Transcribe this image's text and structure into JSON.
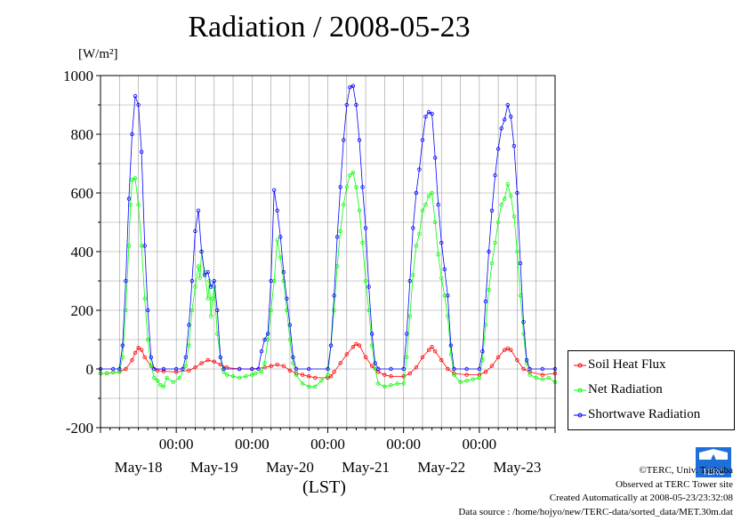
{
  "header": {
    "title": "Radiation / 2008-05-23",
    "unit_label": "[W/m²]"
  },
  "axis": {
    "time_zone_label": "(LST)"
  },
  "credits": {
    "copyright": "©TERC, Univ. Tsukuba",
    "observed": "Observed at TERC Tower site",
    "created": "Created Automatically at 2008-05-23/23:32:08",
    "source": "Data source : /home/hojyo/new/TERC-data/sorted_data/MET.30m.dat"
  },
  "logo": {
    "text": "TERC",
    "icon": "terc-logo-icon"
  },
  "colors": {
    "soil": "#ff0000",
    "net": "#00ff00",
    "shortwave": "#0000ff",
    "grid": "#999999"
  },
  "chart_data": {
    "type": "line",
    "title": "Radiation / 2008-05-23",
    "ylabel": "[W/m²]",
    "xlabel": "(LST)",
    "ylim": [
      -200,
      1000
    ],
    "yticks": [
      -200,
      0,
      200,
      400,
      600,
      800,
      1000
    ],
    "xlim_hours": [
      0,
      144
    ],
    "day_labels": [
      "May-18",
      "May-19",
      "May-20",
      "May-21",
      "May-22",
      "May-23"
    ],
    "midnight_labels": [
      "00:00",
      "00:00",
      "00:00",
      "00:00",
      "00:00"
    ],
    "legend": {
      "position": "right",
      "entries": [
        "Soil Heat Flux",
        "Net Radiation",
        "Shortwave Radiation"
      ]
    },
    "grid": true,
    "series": [
      {
        "name": "Soil Heat Flux",
        "color": "#ff0000",
        "points": [
          [
            0,
            -15
          ],
          [
            2,
            -15
          ],
          [
            4,
            -12
          ],
          [
            6,
            -10
          ],
          [
            8,
            0
          ],
          [
            10,
            30
          ],
          [
            11,
            55
          ],
          [
            12,
            72
          ],
          [
            13,
            65
          ],
          [
            14,
            40
          ],
          [
            16,
            10
          ],
          [
            18,
            -5
          ],
          [
            20,
            -8
          ],
          [
            24,
            -10
          ],
          [
            28,
            -5
          ],
          [
            30,
            5
          ],
          [
            32,
            20
          ],
          [
            34,
            30
          ],
          [
            36,
            25
          ],
          [
            38,
            15
          ],
          [
            40,
            5
          ],
          [
            44,
            0
          ],
          [
            48,
            0
          ],
          [
            52,
            5
          ],
          [
            54,
            10
          ],
          [
            56,
            15
          ],
          [
            58,
            10
          ],
          [
            60,
            -5
          ],
          [
            62,
            -15
          ],
          [
            64,
            -20
          ],
          [
            66,
            -25
          ],
          [
            68,
            -30
          ],
          [
            72,
            -30
          ],
          [
            73,
            -25
          ],
          [
            74,
            -10
          ],
          [
            76,
            20
          ],
          [
            78,
            50
          ],
          [
            80,
            75
          ],
          [
            81,
            85
          ],
          [
            82,
            80
          ],
          [
            84,
            40
          ],
          [
            86,
            10
          ],
          [
            88,
            -10
          ],
          [
            90,
            -20
          ],
          [
            92,
            -25
          ],
          [
            96,
            -25
          ],
          [
            98,
            -15
          ],
          [
            100,
            5
          ],
          [
            102,
            40
          ],
          [
            104,
            65
          ],
          [
            105,
            75
          ],
          [
            106,
            60
          ],
          [
            108,
            30
          ],
          [
            110,
            0
          ],
          [
            112,
            -15
          ],
          [
            116,
            -20
          ],
          [
            120,
            -20
          ],
          [
            122,
            -10
          ],
          [
            124,
            10
          ],
          [
            126,
            40
          ],
          [
            128,
            65
          ],
          [
            129,
            70
          ],
          [
            130,
            65
          ],
          [
            132,
            30
          ],
          [
            134,
            0
          ],
          [
            136,
            -10
          ],
          [
            140,
            -20
          ],
          [
            144,
            -15
          ]
        ]
      },
      {
        "name": "Net Radiation",
        "color": "#00ff00",
        "points": [
          [
            0,
            -15
          ],
          [
            2,
            -15
          ],
          [
            4,
            -12
          ],
          [
            6,
            -10
          ],
          [
            7,
            40
          ],
          [
            8,
            200
          ],
          [
            9,
            420
          ],
          [
            9.5,
            560
          ],
          [
            10,
            645
          ],
          [
            11,
            650
          ],
          [
            12,
            560
          ],
          [
            13,
            420
          ],
          [
            14,
            240
          ],
          [
            15,
            100
          ],
          [
            16,
            10
          ],
          [
            17,
            -30
          ],
          [
            18,
            -40
          ],
          [
            19,
            -55
          ],
          [
            20,
            -60
          ],
          [
            21,
            -30
          ],
          [
            23,
            -45
          ],
          [
            25,
            -30
          ],
          [
            27,
            10
          ],
          [
            28,
            80
          ],
          [
            29,
            200
          ],
          [
            30,
            280
          ],
          [
            31,
            350
          ],
          [
            31.5,
            310
          ],
          [
            32,
            400
          ],
          [
            33,
            330
          ],
          [
            34,
            240
          ],
          [
            34.5,
            300
          ],
          [
            35,
            180
          ],
          [
            35.5,
            240
          ],
          [
            36,
            280
          ],
          [
            37,
            120
          ],
          [
            38,
            40
          ],
          [
            39,
            -10
          ],
          [
            40,
            -20
          ],
          [
            42,
            -25
          ],
          [
            44,
            -30
          ],
          [
            46,
            -25
          ],
          [
            48,
            -20
          ],
          [
            49,
            -15
          ],
          [
            51,
            -10
          ],
          [
            52,
            20
          ],
          [
            53,
            100
          ],
          [
            54,
            200
          ],
          [
            55,
            300
          ],
          [
            56,
            440
          ],
          [
            57,
            380
          ],
          [
            58,
            300
          ],
          [
            59,
            200
          ],
          [
            60,
            100
          ],
          [
            61,
            20
          ],
          [
            62,
            -20
          ],
          [
            64,
            -50
          ],
          [
            66,
            -60
          ],
          [
            68,
            -60
          ],
          [
            70,
            -40
          ],
          [
            72,
            -20
          ],
          [
            73,
            80
          ],
          [
            74,
            200
          ],
          [
            75,
            350
          ],
          [
            76,
            470
          ],
          [
            77,
            560
          ],
          [
            78,
            620
          ],
          [
            79,
            660
          ],
          [
            80,
            670
          ],
          [
            81,
            620
          ],
          [
            82,
            540
          ],
          [
            83,
            430
          ],
          [
            84,
            300
          ],
          [
            85,
            200
          ],
          [
            86,
            80
          ],
          [
            87,
            0
          ],
          [
            88,
            -50
          ],
          [
            90,
            -60
          ],
          [
            92,
            -55
          ],
          [
            94,
            -50
          ],
          [
            96,
            -50
          ],
          [
            97,
            40
          ],
          [
            98,
            180
          ],
          [
            99,
            320
          ],
          [
            100,
            420
          ],
          [
            101,
            460
          ],
          [
            102,
            540
          ],
          [
            103,
            560
          ],
          [
            104,
            590
          ],
          [
            105,
            600
          ],
          [
            106,
            500
          ],
          [
            107,
            390
          ],
          [
            108,
            310
          ],
          [
            109,
            250
          ],
          [
            110,
            180
          ],
          [
            111,
            50
          ],
          [
            112,
            -20
          ],
          [
            114,
            -45
          ],
          [
            116,
            -40
          ],
          [
            118,
            -35
          ],
          [
            120,
            -30
          ],
          [
            121,
            30
          ],
          [
            122,
            150
          ],
          [
            123,
            270
          ],
          [
            124,
            360
          ],
          [
            125,
            430
          ],
          [
            126,
            500
          ],
          [
            127,
            560
          ],
          [
            128,
            580
          ],
          [
            129,
            630
          ],
          [
            130,
            590
          ],
          [
            131,
            520
          ],
          [
            132,
            400
          ],
          [
            133,
            250
          ],
          [
            134,
            120
          ],
          [
            135,
            20
          ],
          [
            136,
            -20
          ],
          [
            138,
            -30
          ],
          [
            140,
            -35
          ],
          [
            142,
            -30
          ],
          [
            144,
            -45
          ]
        ]
      },
      {
        "name": "Shortwave Radiation",
        "color": "#0000ff",
        "points": [
          [
            0,
            0
          ],
          [
            4,
            0
          ],
          [
            6,
            0
          ],
          [
            7,
            80
          ],
          [
            8,
            300
          ],
          [
            9,
            580
          ],
          [
            10,
            800
          ],
          [
            11,
            930
          ],
          [
            12,
            900
          ],
          [
            13,
            740
          ],
          [
            14,
            420
          ],
          [
            15,
            200
          ],
          [
            16,
            40
          ],
          [
            17,
            0
          ],
          [
            20,
            0
          ],
          [
            24,
            0
          ],
          [
            26,
            0
          ],
          [
            27,
            40
          ],
          [
            28,
            150
          ],
          [
            29,
            300
          ],
          [
            30,
            470
          ],
          [
            31,
            540
          ],
          [
            32,
            400
          ],
          [
            33,
            320
          ],
          [
            34,
            330
          ],
          [
            35,
            280
          ],
          [
            36,
            300
          ],
          [
            37,
            200
          ],
          [
            38,
            40
          ],
          [
            39,
            0
          ],
          [
            44,
            0
          ],
          [
            48,
            0
          ],
          [
            50,
            0
          ],
          [
            51,
            60
          ],
          [
            52,
            100
          ],
          [
            53,
            120
          ],
          [
            54,
            300
          ],
          [
            55,
            610
          ],
          [
            56,
            540
          ],
          [
            57,
            450
          ],
          [
            58,
            330
          ],
          [
            59,
            240
          ],
          [
            60,
            150
          ],
          [
            61,
            40
          ],
          [
            62,
            0
          ],
          [
            66,
            0
          ],
          [
            72,
            0
          ],
          [
            73,
            80
          ],
          [
            74,
            250
          ],
          [
            75,
            450
          ],
          [
            76,
            620
          ],
          [
            77,
            780
          ],
          [
            78,
            900
          ],
          [
            79,
            960
          ],
          [
            80,
            965
          ],
          [
            81,
            900
          ],
          [
            82,
            780
          ],
          [
            83,
            620
          ],
          [
            84,
            480
          ],
          [
            85,
            280
          ],
          [
            86,
            120
          ],
          [
            87,
            20
          ],
          [
            88,
            0
          ],
          [
            92,
            0
          ],
          [
            96,
            0
          ],
          [
            97,
            120
          ],
          [
            98,
            300
          ],
          [
            99,
            480
          ],
          [
            100,
            600
          ],
          [
            101,
            680
          ],
          [
            102,
            780
          ],
          [
            103,
            860
          ],
          [
            104,
            875
          ],
          [
            105,
            870
          ],
          [
            106,
            720
          ],
          [
            107,
            560
          ],
          [
            108,
            430
          ],
          [
            109,
            340
          ],
          [
            110,
            250
          ],
          [
            111,
            80
          ],
          [
            112,
            0
          ],
          [
            116,
            0
          ],
          [
            120,
            0
          ],
          [
            121,
            60
          ],
          [
            122,
            230
          ],
          [
            123,
            400
          ],
          [
            124,
            540
          ],
          [
            125,
            660
          ],
          [
            126,
            750
          ],
          [
            127,
            820
          ],
          [
            128,
            850
          ],
          [
            129,
            900
          ],
          [
            130,
            860
          ],
          [
            131,
            760
          ],
          [
            132,
            600
          ],
          [
            133,
            360
          ],
          [
            134,
            160
          ],
          [
            135,
            30
          ],
          [
            136,
            0
          ],
          [
            140,
            0
          ],
          [
            144,
            0
          ]
        ]
      }
    ]
  }
}
